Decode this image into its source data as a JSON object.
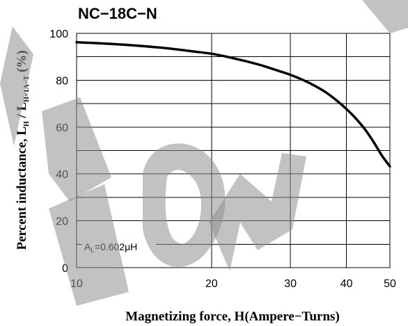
{
  "chart_data": {
    "type": "line",
    "title": "NC−18C−N",
    "xlabel": "Magnetizing force, H(Ampere−Turns)",
    "ylabel_main": "Percent inductance, L",
    "ylabel_sub1": "H",
    "ylabel_mid": " / L",
    "ylabel_sub2": "H=1A−T",
    "ylabel_end": " (%)",
    "xscale": "log",
    "xlim": [
      10,
      50
    ],
    "ylim": [
      0,
      100
    ],
    "xticks": [
      10,
      20,
      30,
      40,
      50
    ],
    "xtick_labels": [
      "10",
      "20",
      "30",
      "40",
      "50"
    ],
    "yticks": [
      0,
      20,
      40,
      60,
      80,
      100
    ],
    "ytick_labels": [
      "0",
      "20",
      "40",
      "60",
      "80",
      "100"
    ],
    "grid": true,
    "annotation_prefix": "A",
    "annotation_sub": "L",
    "annotation_value": "=0.602μH",
    "series": [
      {
        "x": [
          10,
          12,
          14,
          16,
          18,
          20,
          22,
          24,
          26,
          28,
          30,
          32,
          34,
          36,
          38,
          40,
          42,
          44,
          46,
          48,
          50
        ],
        "y": [
          96.2,
          95.5,
          94.6,
          93.6,
          92.4,
          91.3,
          89.7,
          88.0,
          86.2,
          84.2,
          82.3,
          80.1,
          77.6,
          74.8,
          71.4,
          67.7,
          63.6,
          59.0,
          53.6,
          47.8,
          43.2
        ]
      }
    ],
    "line_color": "#000000"
  },
  "watermark_color": "#8f8f8f"
}
